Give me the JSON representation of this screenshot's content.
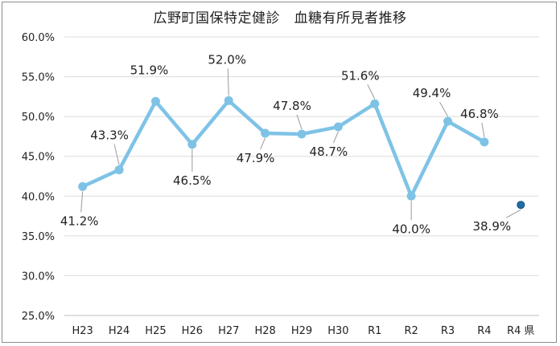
{
  "chart_data": {
    "type": "line",
    "title": "広野町国保特定健診　血糖有所見者推移",
    "categories": [
      "H23",
      "H24",
      "H25",
      "H26",
      "H27",
      "H28",
      "H29",
      "H30",
      "R1",
      "R2",
      "R3",
      "R4",
      "R4 県"
    ],
    "series": [
      {
        "values": [
          41.2,
          43.3,
          51.9,
          46.5,
          52.0,
          47.9,
          47.8,
          48.7,
          51.6,
          40.0,
          49.4,
          46.8,
          null
        ],
        "labels": [
          "41.2%",
          "43.3%",
          "51.9%",
          "46.5%",
          "52.0%",
          "47.9%",
          "47.8%",
          "48.7%",
          "51.6%",
          "40.0%",
          "49.4%",
          "46.8%",
          ""
        ],
        "color": "#7ec3e6"
      },
      {
        "values": [
          null,
          null,
          null,
          null,
          null,
          null,
          null,
          null,
          null,
          null,
          null,
          null,
          38.9
        ],
        "labels": [
          "",
          "",
          "",
          "",
          "",
          "",
          "",
          "",
          "",
          "",
          "",
          "",
          "38.9%"
        ],
        "color": "#1f6ea8"
      }
    ],
    "yticks": [
      "25.0%",
      "30.0%",
      "35.0%",
      "40.0%",
      "45.0%",
      "50.0%",
      "55.0%",
      "60.0%"
    ],
    "ylim": [
      25,
      60
    ],
    "grid": true,
    "legend": "none"
  }
}
